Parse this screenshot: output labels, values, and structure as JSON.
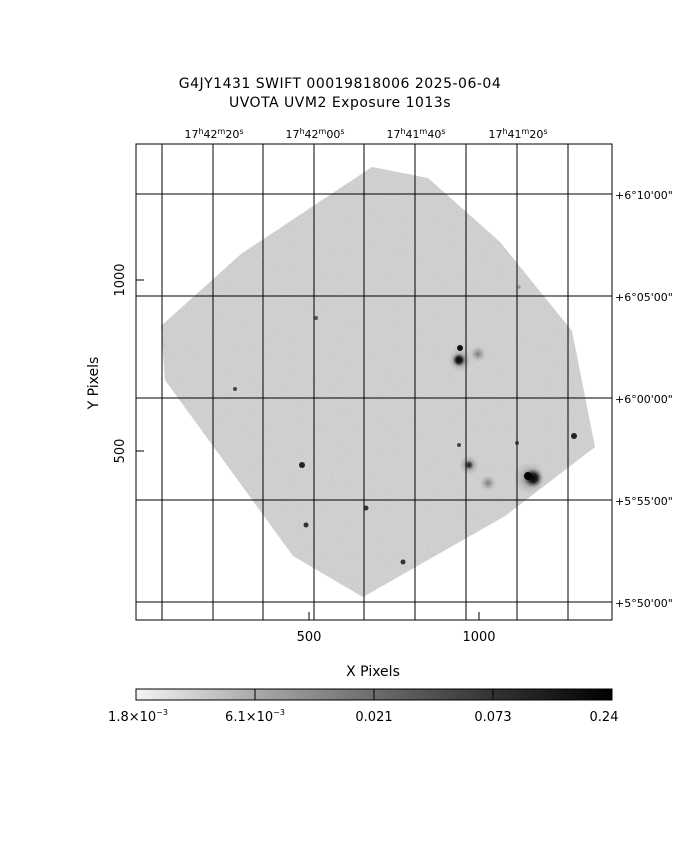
{
  "header": {
    "title_line1": "G4JY1431 SWIFT 00019818006 2025-06-04",
    "title_line2": "UVOTA UVM2 Exposure        1013s"
  },
  "axes": {
    "xlabel": "X Pixels",
    "ylabel": "Y Pixels",
    "x_ticks": [
      "500",
      "1000"
    ],
    "y_ticks": [
      "500",
      "1000"
    ],
    "ra_ticks": [
      {
        "h": "17",
        "m": "42",
        "s": "20"
      },
      {
        "h": "17",
        "m": "42",
        "s": "00"
      },
      {
        "h": "17",
        "m": "41",
        "s": "40"
      },
      {
        "h": "17",
        "m": "41",
        "s": "20"
      }
    ],
    "dec_ticks": [
      "+6°10'00\"",
      "+6°05'00\"",
      "+6°00'00\"",
      "+5°55'00\"",
      "+5°50'00\""
    ]
  },
  "colorbar": {
    "labels": [
      {
        "base": "1.8×10",
        "exp": "−3"
      },
      {
        "base": "6.1×10",
        "exp": "−3"
      },
      {
        "base": "0.021",
        "exp": ""
      },
      {
        "base": "0.073",
        "exp": ""
      },
      {
        "base": "0.24",
        "exp": ""
      }
    ]
  },
  "colors": {
    "background": "#ffffff",
    "noise": "#a8a8a8",
    "grid": "#000000"
  }
}
